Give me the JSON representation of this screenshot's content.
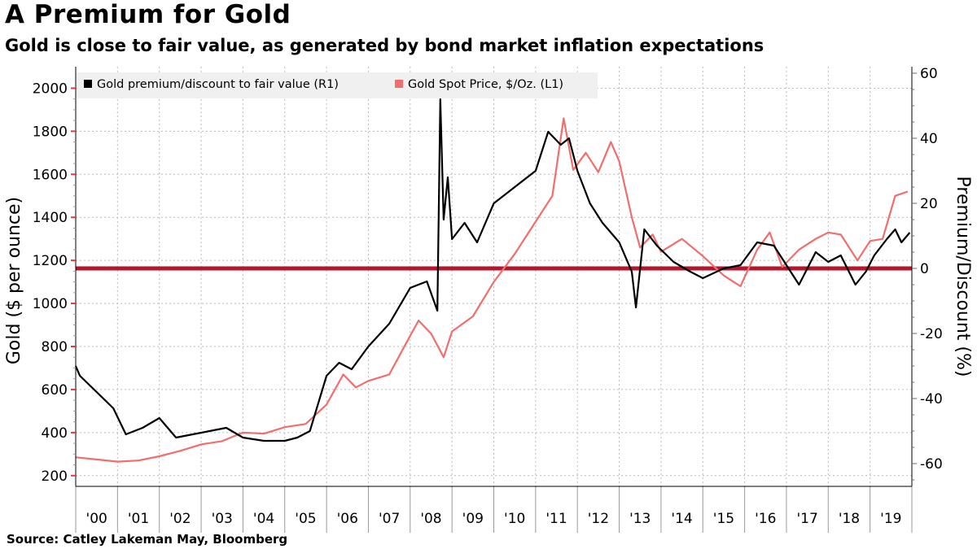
{
  "header": {
    "title": "A Premium for Gold",
    "subtitle": "Gold is close to fair value, as generated by bond market inflation expectations"
  },
  "footer": {
    "source": "Source: Catley Lakeman May, Bloomberg"
  },
  "colors": {
    "gold_price": "#f26d6d",
    "premium": "#000000",
    "zero_line": "#b5162b",
    "grid": "#bbbbbb",
    "tick_left": "#e0393e"
  },
  "chart_data": {
    "type": "line",
    "title": "A Premium for Gold",
    "subtitle": "Gold is close to fair value, as generated by bond market inflation expectations",
    "xlabel": "",
    "x_ticks": [
      "'00",
      "'01",
      "'02",
      "'03",
      "'04",
      "'05",
      "'06",
      "'07",
      "'08",
      "'09",
      "'10",
      "'11",
      "'12",
      "'13",
      "'14",
      "'15",
      "'16",
      "'17",
      "'18",
      "'19"
    ],
    "x_range": [
      2000.0,
      2020.0
    ],
    "y_left": {
      "label": "Gold ($ per ounce)",
      "range": [
        150,
        2100
      ],
      "ticks": [
        200,
        400,
        600,
        800,
        1000,
        1200,
        1400,
        1600,
        1800,
        2000
      ]
    },
    "y_right": {
      "label": "Premium/Discount (%)",
      "range": [
        -67,
        62
      ],
      "ticks": [
        -60,
        -40,
        -20,
        0,
        20,
        40,
        60
      ]
    },
    "legend": {
      "placement": "top-left",
      "entries": [
        "Gold premium/discount to fair value (R1)",
        "Gold Spot Price, $/Oz. (L1)"
      ]
    },
    "reference_line": {
      "axis": "right",
      "value": 0
    },
    "series": [
      {
        "name": "Gold Spot Price, $/Oz. (L1)",
        "axis": "left",
        "x": [
          2000.0,
          2000.5,
          2001.0,
          2001.5,
          2002.0,
          2002.5,
          2003.0,
          2003.5,
          2004.0,
          2004.5,
          2005.0,
          2005.5,
          2006.0,
          2006.4,
          2006.7,
          2007.0,
          2007.5,
          2008.0,
          2008.2,
          2008.5,
          2008.8,
          2009.0,
          2009.5,
          2010.0,
          2010.5,
          2011.0,
          2011.4,
          2011.67,
          2011.9,
          2012.2,
          2012.5,
          2012.8,
          2013.0,
          2013.3,
          2013.5,
          2013.8,
          2014.0,
          2014.5,
          2015.0,
          2015.5,
          2015.9,
          2016.3,
          2016.6,
          2016.9,
          2017.3,
          2017.7,
          2018.0,
          2018.3,
          2018.7,
          2019.0,
          2019.3,
          2019.6,
          2019.9
        ],
        "values": [
          285,
          275,
          265,
          270,
          290,
          315,
          345,
          360,
          400,
          395,
          425,
          440,
          530,
          670,
          610,
          640,
          670,
          850,
          920,
          860,
          750,
          870,
          940,
          1100,
          1230,
          1380,
          1500,
          1860,
          1620,
          1700,
          1610,
          1750,
          1660,
          1400,
          1260,
          1320,
          1240,
          1300,
          1220,
          1130,
          1080,
          1250,
          1330,
          1170,
          1250,
          1300,
          1330,
          1320,
          1200,
          1290,
          1300,
          1500,
          1520
        ]
      },
      {
        "name": "Gold premium/discount to fair value (R1)",
        "axis": "right",
        "x": [
          2000.0,
          2000.1,
          2000.5,
          2000.9,
          2001.2,
          2001.6,
          2002.0,
          2002.4,
          2002.8,
          2003.2,
          2003.6,
          2004.0,
          2004.5,
          2005.0,
          2005.3,
          2005.6,
          2006.0,
          2006.3,
          2006.6,
          2007.0,
          2007.5,
          2008.0,
          2008.4,
          2008.65,
          2008.72,
          2008.8,
          2008.9,
          2009.0,
          2009.3,
          2009.6,
          2010.0,
          2010.5,
          2011.0,
          2011.3,
          2011.6,
          2011.8,
          2012.0,
          2012.3,
          2012.6,
          2013.0,
          2013.3,
          2013.4,
          2013.6,
          2013.9,
          2014.3,
          2014.7,
          2015.0,
          2015.5,
          2015.9,
          2016.3,
          2016.7,
          2016.9,
          2017.3,
          2017.7,
          2018.0,
          2018.3,
          2018.65,
          2018.9,
          2019.1,
          2019.4,
          2019.6,
          2019.75,
          2019.95
        ],
        "values": [
          -30,
          -33,
          -38,
          -43,
          -51,
          -49,
          -46,
          -52,
          -51,
          -50,
          -49,
          -52,
          -53,
          -53,
          -52,
          -50,
          -33,
          -29,
          -31,
          -24,
          -17,
          -6,
          -4,
          -13,
          52,
          15,
          28,
          9,
          14,
          8,
          20,
          25,
          30,
          42,
          38,
          40,
          30,
          20,
          14,
          8,
          -1,
          -12,
          12,
          7,
          2,
          -1,
          -3,
          0,
          1,
          8,
          7,
          3,
          -5,
          5,
          2,
          4,
          -5,
          -1,
          4,
          9,
          12,
          8,
          11
        ]
      }
    ]
  }
}
